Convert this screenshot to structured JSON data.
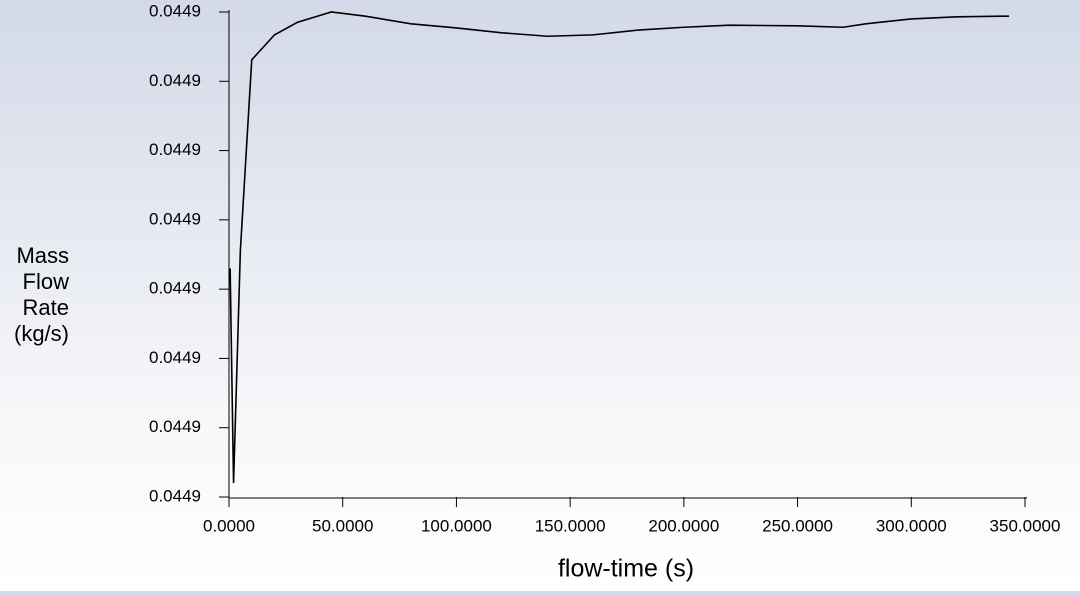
{
  "chart_data": {
    "type": "line",
    "ylabel": [
      "Mass",
      "Flow",
      "Rate",
      "(kg/s)"
    ],
    "xlabel": "flow-time (s)",
    "x": [
      0.5,
      2,
      5,
      10,
      20,
      30,
      45,
      60,
      80,
      100,
      120,
      140,
      160,
      180,
      200,
      220,
      250,
      270,
      280,
      300,
      320,
      340,
      343
    ],
    "series": [
      {
        "color": "#000000",
        "values": [
          0.044893,
          0.044862,
          0.0448956,
          0.0449231,
          0.0449267,
          0.0449285,
          0.04493,
          0.0449294,
          0.0449283,
          0.0449277,
          0.044927,
          0.0449265,
          0.0449267,
          0.0449274,
          0.0449278,
          0.0449281,
          0.044928,
          0.0449278,
          0.0449283,
          0.044929,
          0.0449293,
          0.0449294,
          0.0449294
        ]
      }
    ],
    "xlim": [
      0,
      350
    ],
    "xticks": [
      {
        "value": 0,
        "label": "0.0000"
      },
      {
        "value": 50,
        "label": "50.0000"
      },
      {
        "value": 100,
        "label": "100.0000"
      },
      {
        "value": 150,
        "label": "150.0000"
      },
      {
        "value": 200,
        "label": "200.0000"
      },
      {
        "value": 250,
        "label": "250.0000"
      },
      {
        "value": 300,
        "label": "300.0000"
      },
      {
        "value": 350,
        "label": "350.0000"
      }
    ],
    "ylim": [
      0.04486,
      0.04493
    ],
    "yticks": [
      {
        "value": 0.04486,
        "label": "0.0449"
      },
      {
        "value": 0.04487,
        "label": "0.0449"
      },
      {
        "value": 0.04488,
        "label": "0.0449"
      },
      {
        "value": 0.04489,
        "label": "0.0449"
      },
      {
        "value": 0.0449,
        "label": "0.0449"
      },
      {
        "value": 0.04491,
        "label": "0.0449"
      },
      {
        "value": 0.04492,
        "label": "0.0449"
      },
      {
        "value": 0.04493,
        "label": "0.0449"
      }
    ]
  }
}
